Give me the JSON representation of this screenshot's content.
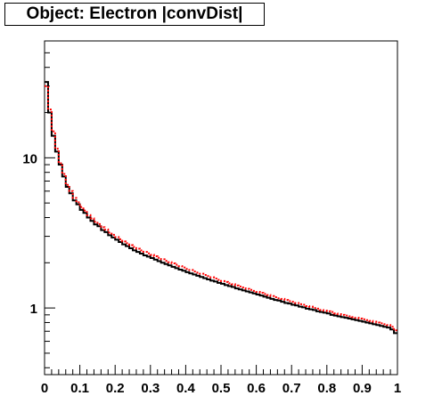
{
  "chart_data": {
    "type": "line",
    "title": "Object: Electron |convDist|",
    "xlabel": "",
    "ylabel": "",
    "xlim": [
      0,
      1
    ],
    "ylim": [
      0.36,
      60
    ],
    "y_scale": "log",
    "grid": false,
    "legend": "none",
    "x_ticks": [
      "0",
      "0.1",
      "0.2",
      "0.3",
      "0.4",
      "0.5",
      "0.6",
      "0.7",
      "0.8",
      "0.9",
      "1"
    ],
    "y_ticks": [
      {
        "value": 1,
        "label": "1"
      },
      {
        "value": 10,
        "label": "10"
      }
    ],
    "bin_edges_step": 0.01,
    "series": [
      {
        "color": "#000000",
        "style": "solid-step",
        "values": [
          32,
          20,
          14,
          11,
          9,
          7.5,
          6.4,
          5.8,
          5.2,
          4.9,
          4.5,
          4.3,
          4.0,
          3.8,
          3.6,
          3.5,
          3.3,
          3.2,
          3.05,
          2.95,
          2.85,
          2.75,
          2.65,
          2.58,
          2.5,
          2.42,
          2.36,
          2.3,
          2.24,
          2.2,
          2.15,
          2.1,
          2.05,
          2.0,
          1.96,
          1.92,
          1.88,
          1.84,
          1.8,
          1.77,
          1.73,
          1.7,
          1.67,
          1.64,
          1.61,
          1.58,
          1.55,
          1.52,
          1.5,
          1.47,
          1.45,
          1.42,
          1.4,
          1.38,
          1.35,
          1.33,
          1.31,
          1.29,
          1.27,
          1.25,
          1.23,
          1.21,
          1.19,
          1.17,
          1.15,
          1.13,
          1.12,
          1.1,
          1.08,
          1.07,
          1.05,
          1.04,
          1.02,
          1.01,
          0.99,
          0.98,
          0.97,
          0.95,
          0.94,
          0.93,
          0.92,
          0.9,
          0.89,
          0.88,
          0.87,
          0.86,
          0.85,
          0.84,
          0.83,
          0.82,
          0.81,
          0.8,
          0.79,
          0.78,
          0.77,
          0.76,
          0.75,
          0.74,
          0.72,
          0.68
        ]
      },
      {
        "color": "#ff0000",
        "style": "dotted-step",
        "values": [
          30,
          21,
          15,
          11.5,
          9.2,
          7.8,
          6.6,
          6.0,
          5.4,
          5.05,
          4.7,
          4.45,
          4.15,
          3.95,
          3.75,
          3.62,
          3.45,
          3.33,
          3.18,
          3.07,
          2.97,
          2.87,
          2.77,
          2.7,
          2.62,
          2.55,
          2.48,
          2.42,
          2.36,
          2.31,
          2.26,
          2.21,
          2.16,
          2.11,
          2.06,
          2.02,
          1.98,
          1.94,
          1.9,
          1.86,
          1.82,
          1.79,
          1.75,
          1.72,
          1.69,
          1.66,
          1.63,
          1.6,
          1.57,
          1.54,
          1.51,
          1.49,
          1.46,
          1.44,
          1.41,
          1.39,
          1.37,
          1.34,
          1.32,
          1.3,
          1.28,
          1.26,
          1.24,
          1.22,
          1.2,
          1.18,
          1.16,
          1.15,
          1.13,
          1.11,
          1.1,
          1.08,
          1.06,
          1.05,
          1.03,
          1.02,
          1.0,
          0.99,
          0.97,
          0.96,
          0.95,
          0.94,
          0.92,
          0.91,
          0.9,
          0.89,
          0.88,
          0.87,
          0.86,
          0.85,
          0.84,
          0.83,
          0.82,
          0.81,
          0.8,
          0.79,
          0.78,
          0.77,
          0.75,
          0.71
        ]
      }
    ]
  }
}
